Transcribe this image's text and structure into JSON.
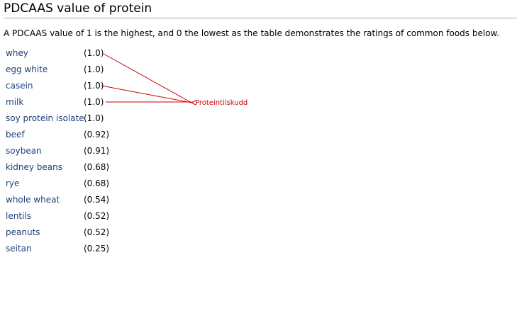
{
  "header": {
    "title": "PDCAAS value of protein"
  },
  "intro": "A PDCAAS value of 1 is the highest, and 0 the lowest as the table demonstrates the ratings of common foods below.",
  "table": {
    "rows": [
      [
        "whey",
        "(1.0)"
      ],
      [
        "egg white",
        "(1.0)"
      ],
      [
        "casein",
        "(1.0)"
      ],
      [
        "milk",
        "(1.0)"
      ],
      [
        "soy protein isolate",
        "(1.0)"
      ],
      [
        "beef",
        "(0.92)"
      ],
      [
        "soybean",
        "(0.91)"
      ],
      [
        "kidney beans",
        "(0.68)"
      ],
      [
        "rye",
        "(0.68)"
      ],
      [
        "whole wheat",
        "(0.54)"
      ],
      [
        "lentils",
        "(0.52)"
      ],
      [
        "peanuts",
        "(0.52)"
      ],
      [
        "seitan",
        "(0.25)"
      ]
    ]
  },
  "annotation": {
    "label": "Proteintilskudd"
  }
}
